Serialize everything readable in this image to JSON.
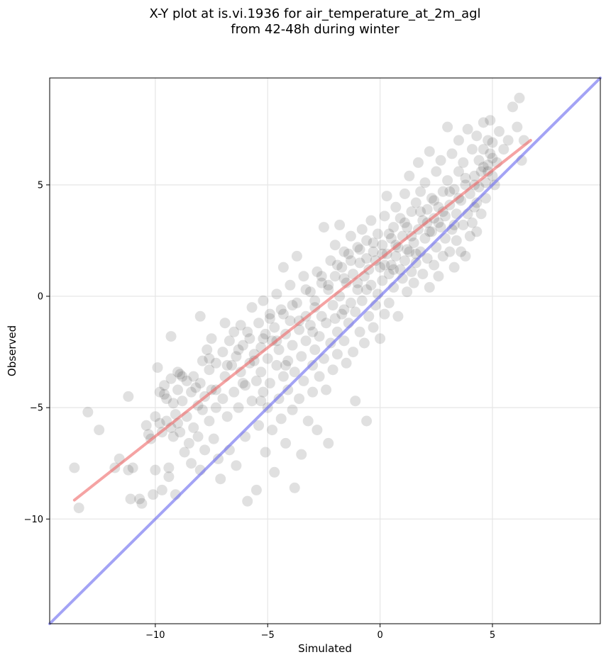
{
  "chart_data": {
    "type": "scatter",
    "title_line1": "X-Y plot at is.vi.1936 for air_temperature_at_2m_agl",
    "title_line2": "from 42-48h during winter",
    "xlabel": "Simulated",
    "ylabel": "Observed",
    "xlim": [
      -14.7,
      9.8
    ],
    "ylim": [
      -14.7,
      9.8
    ],
    "xticks": [
      -10,
      -5,
      0,
      5
    ],
    "xtick_labels": [
      "−10",
      "−5",
      "0",
      "5"
    ],
    "yticks": [
      -10,
      -5,
      0,
      5
    ],
    "ytick_labels": [
      "−10",
      "−5",
      "0",
      "5"
    ],
    "grid": true,
    "point_color": "#000000",
    "point_alpha": 0.12,
    "identity_line": {
      "color": "#6666ee",
      "x": [
        -14.7,
        9.8
      ],
      "y": [
        -14.7,
        9.8
      ]
    },
    "fit_line": {
      "color": "#ee6666",
      "x": [
        -13.6,
        6.7
      ],
      "y": [
        -9.15,
        7.0
      ]
    },
    "points": [
      [
        -13.6,
        -7.7
      ],
      [
        -13.4,
        -9.5
      ],
      [
        -13.0,
        -5.2
      ],
      [
        -12.5,
        -6.0
      ],
      [
        -11.8,
        -7.7
      ],
      [
        -11.6,
        -7.3
      ],
      [
        -11.2,
        -4.5
      ],
      [
        -11.2,
        -7.8
      ],
      [
        -11.1,
        -9.1
      ],
      [
        -11.0,
        -7.7
      ],
      [
        -10.7,
        -9.1
      ],
      [
        -10.6,
        -9.3
      ],
      [
        -10.4,
        -5.8
      ],
      [
        -10.2,
        -6.4
      ],
      [
        -10.1,
        -8.9
      ],
      [
        -10.0,
        -5.4
      ],
      [
        -10.0,
        -7.8
      ],
      [
        -9.9,
        -3.2
      ],
      [
        -9.8,
        -4.3
      ],
      [
        -9.8,
        -5.7
      ],
      [
        -9.7,
        -6.1
      ],
      [
        -9.7,
        -8.7
      ],
      [
        -9.6,
        -4.0
      ],
      [
        -9.5,
        -4.6
      ],
      [
        -9.5,
        -5.6
      ],
      [
        -9.4,
        -7.7
      ],
      [
        -9.4,
        -8.1
      ],
      [
        -9.3,
        -1.8
      ],
      [
        -9.3,
        -3.7
      ],
      [
        -9.3,
        -5.9
      ],
      [
        -9.2,
        -4.8
      ],
      [
        -9.2,
        -6.3
      ],
      [
        -9.1,
        -5.3
      ],
      [
        -9.1,
        -8.9
      ],
      [
        -9.0,
        -3.4
      ],
      [
        -9.0,
        -4.2
      ],
      [
        -8.9,
        -3.5
      ],
      [
        -8.9,
        -6.1
      ],
      [
        -8.8,
        -4.7
      ],
      [
        -8.7,
        -7.0
      ],
      [
        -8.6,
        -3.8
      ],
      [
        -8.6,
        -5.4
      ],
      [
        -8.5,
        -6.6
      ],
      [
        -8.4,
        -4.3
      ],
      [
        -8.4,
        -7.5
      ],
      [
        -8.3,
        -3.6
      ],
      [
        -8.3,
        -5.9
      ],
      [
        -8.2,
        -4.1
      ],
      [
        -8.1,
        -6.3
      ],
      [
        -8.0,
        -0.9
      ],
      [
        -8.0,
        -3.9
      ],
      [
        -8.0,
        -7.8
      ],
      [
        -7.9,
        -2.9
      ],
      [
        -7.9,
        -5.1
      ],
      [
        -7.8,
        -4.5
      ],
      [
        -7.8,
        -6.9
      ],
      [
        -7.7,
        -2.4
      ],
      [
        -7.6,
        -3.3
      ],
      [
        -7.6,
        -5.6
      ],
      [
        -7.5,
        -1.9
      ],
      [
        -7.5,
        -4.2
      ],
      [
        -7.4,
        -6.4
      ],
      [
        -7.3,
        -3.0
      ],
      [
        -7.3,
        -5.0
      ],
      [
        -7.2,
        -7.3
      ],
      [
        -7.1,
        -8.2
      ],
      [
        -7.0,
        -2.5
      ],
      [
        -7.0,
        -4.6
      ],
      [
        -6.9,
        -1.2
      ],
      [
        -6.9,
        -3.6
      ],
      [
        -6.8,
        -5.4
      ],
      [
        -6.7,
        -2.0
      ],
      [
        -6.7,
        -6.9
      ],
      [
        -6.6,
        -3.1
      ],
      [
        -6.5,
        -1.6
      ],
      [
        -6.5,
        -4.3
      ],
      [
        -6.4,
        -2.7
      ],
      [
        -6.4,
        -7.6
      ],
      [
        -6.3,
        -5.0
      ],
      [
        -6.2,
        -1.3
      ],
      [
        -6.2,
        -3.4
      ],
      [
        -6.1,
        -2.2
      ],
      [
        -6.0,
        -4.0
      ],
      [
        -6.0,
        -6.3
      ],
      [
        -5.9,
        -9.2
      ],
      [
        -5.8,
        -1.9
      ],
      [
        -5.8,
        -3.0
      ],
      [
        -5.7,
        -0.5
      ],
      [
        -5.7,
        -4.7
      ],
      [
        -5.6,
        -2.6
      ],
      [
        -5.5,
        -3.8
      ],
      [
        -5.5,
        -8.7
      ],
      [
        -5.4,
        -1.2
      ],
      [
        -5.4,
        -5.8
      ],
      [
        -5.3,
        -2.3
      ],
      [
        -5.3,
        -3.4
      ],
      [
        -5.2,
        -0.2
      ],
      [
        -5.2,
        -4.3
      ],
      [
        -5.1,
        -1.7
      ],
      [
        -5.1,
        -7.0
      ],
      [
        -5.0,
        -2.8
      ],
      [
        -5.0,
        -5.0
      ],
      [
        -4.9,
        -0.8
      ],
      [
        -4.9,
        -3.9
      ],
      [
        -4.8,
        -2.0
      ],
      [
        -4.8,
        -6.0
      ],
      [
        -4.7,
        -1.4
      ],
      [
        -4.7,
        -7.9
      ],
      [
        -4.6,
        0.1
      ],
      [
        -4.6,
        -3.1
      ],
      [
        -4.5,
        -2.4
      ],
      [
        -4.5,
        -4.6
      ],
      [
        -4.4,
        -0.6
      ],
      [
        -4.4,
        -5.5
      ],
      [
        -4.3,
        1.3
      ],
      [
        -4.3,
        -3.6
      ],
      [
        -4.2,
        -1.7
      ],
      [
        -4.2,
        -6.6
      ],
      [
        -4.1,
        -2.9
      ],
      [
        -4.1,
        -4.2
      ],
      [
        -4.0,
        0.5
      ],
      [
        -4.0,
        -1.1
      ],
      [
        -3.9,
        -2.2
      ],
      [
        -3.9,
        -5.1
      ],
      [
        -3.8,
        -3.4
      ],
      [
        -3.8,
        -8.6
      ],
      [
        -3.7,
        1.8
      ],
      [
        -3.7,
        -0.3
      ],
      [
        -3.6,
        -1.5
      ],
      [
        -3.6,
        -4.6
      ],
      [
        -3.5,
        -2.7
      ],
      [
        -3.5,
        -7.1
      ],
      [
        -3.4,
        0.9
      ],
      [
        -3.4,
        -3.8
      ],
      [
        -3.3,
        -0.9
      ],
      [
        -3.3,
        -2.0
      ],
      [
        -3.2,
        -5.6
      ],
      [
        -3.1,
        -1.3
      ],
      [
        -3.1,
        0.2
      ],
      [
        -3.0,
        -3.1
      ],
      [
        -3.0,
        -4.3
      ],
      [
        -2.9,
        -0.5
      ],
      [
        -2.9,
        -2.4
      ],
      [
        -2.8,
        1.1
      ],
      [
        -2.8,
        -6.0
      ],
      [
        -2.7,
        -1.8
      ],
      [
        -2.7,
        -3.6
      ],
      [
        -2.6,
        0.6
      ],
      [
        -2.6,
        -0.9
      ],
      [
        -2.5,
        -2.8
      ],
      [
        -2.5,
        3.1
      ],
      [
        -2.4,
        -4.2
      ],
      [
        -2.4,
        -1.2
      ],
      [
        -2.3,
        0.3
      ],
      [
        -2.3,
        -6.6
      ],
      [
        -2.2,
        1.6
      ],
      [
        -2.2,
        -2.1
      ],
      [
        -2.1,
        -0.4
      ],
      [
        -2.1,
        -3.3
      ],
      [
        -2.0,
        2.3
      ],
      [
        -2.0,
        0.9
      ],
      [
        -1.9,
        -1.6
      ],
      [
        -1.9,
        -2.6
      ],
      [
        -1.8,
        0.0
      ],
      [
        -1.8,
        3.2
      ],
      [
        -1.7,
        1.3
      ],
      [
        -1.7,
        -0.8
      ],
      [
        -1.6,
        -2.0
      ],
      [
        -1.6,
        2.0
      ],
      [
        -1.5,
        -3.0
      ],
      [
        -1.5,
        0.6
      ],
      [
        -1.4,
        -1.2
      ],
      [
        -1.4,
        1.9
      ],
      [
        -1.3,
        -0.3
      ],
      [
        -1.3,
        2.7
      ],
      [
        -1.2,
        -2.5
      ],
      [
        -1.2,
        1.0
      ],
      [
        -1.1,
        -0.7
      ],
      [
        -1.1,
        -4.7
      ],
      [
        -1.0,
        2.2
      ],
      [
        -1.0,
        0.3
      ],
      [
        -0.9,
        -1.6
      ],
      [
        -0.9,
        1.5
      ],
      [
        -0.8,
        3.0
      ],
      [
        -0.8,
        -0.2
      ],
      [
        -0.7,
        -2.1
      ],
      [
        -0.7,
        0.9
      ],
      [
        -0.6,
        2.5
      ],
      [
        -0.6,
        -5.6
      ],
      [
        -0.5,
        1.2
      ],
      [
        -0.5,
        -0.9
      ],
      [
        -0.4,
        3.4
      ],
      [
        -0.4,
        0.5
      ],
      [
        -0.3,
        -1.4
      ],
      [
        -0.3,
        2.0
      ],
      [
        -0.2,
        1.6
      ],
      [
        -0.2,
        -0.4
      ],
      [
        -0.1,
        2.8
      ],
      [
        -0.1,
        0.1
      ],
      [
        0.0,
        1.3
      ],
      [
        0.0,
        -1.9
      ],
      [
        0.1,
        2.3
      ],
      [
        0.1,
        0.7
      ],
      [
        0.2,
        3.6
      ],
      [
        0.2,
        -0.8
      ],
      [
        0.3,
        1.9
      ],
      [
        0.3,
        4.5
      ],
      [
        0.4,
        1.0
      ],
      [
        0.4,
        -0.3
      ],
      [
        0.5,
        2.6
      ],
      [
        0.5,
        1.4
      ],
      [
        0.6,
        3.1
      ],
      [
        0.6,
        0.4
      ],
      [
        0.7,
        4.0
      ],
      [
        0.7,
        1.8
      ],
      [
        0.8,
        -0.9
      ],
      [
        0.8,
        2.2
      ],
      [
        0.9,
        1.2
      ],
      [
        0.9,
        3.5
      ],
      [
        1.0,
        0.8
      ],
      [
        1.0,
        2.7
      ],
      [
        1.1,
        4.6
      ],
      [
        1.1,
        1.6
      ],
      [
        1.2,
        0.2
      ],
      [
        1.2,
        3.1
      ],
      [
        1.3,
        2.0
      ],
      [
        1.3,
        5.4
      ],
      [
        1.4,
        1.1
      ],
      [
        1.4,
        3.8
      ],
      [
        1.5,
        2.4
      ],
      [
        1.5,
        0.6
      ],
      [
        1.6,
        4.2
      ],
      [
        1.6,
        1.5
      ],
      [
        1.7,
        3.0
      ],
      [
        1.7,
        6.0
      ],
      [
        1.8,
        2.0
      ],
      [
        1.8,
        4.7
      ],
      [
        1.9,
        1.0
      ],
      [
        1.9,
        3.4
      ],
      [
        2.0,
        2.6
      ],
      [
        2.0,
        5.1
      ],
      [
        2.1,
        1.7
      ],
      [
        2.1,
        3.9
      ],
      [
        2.2,
        0.4
      ],
      [
        2.2,
        6.5
      ],
      [
        2.3,
        2.9
      ],
      [
        2.3,
        4.4
      ],
      [
        2.4,
        1.4
      ],
      [
        2.4,
        3.5
      ],
      [
        2.5,
        5.6
      ],
      [
        2.5,
        2.2
      ],
      [
        2.6,
        4.0
      ],
      [
        2.6,
        0.9
      ],
      [
        2.7,
        3.1
      ],
      [
        2.7,
        6.1
      ],
      [
        2.8,
        1.8
      ],
      [
        2.8,
        4.7
      ],
      [
        2.9,
        2.6
      ],
      [
        2.9,
        3.6
      ],
      [
        3.0,
        5.2
      ],
      [
        3.0,
        7.6
      ],
      [
        3.1,
        2.0
      ],
      [
        3.1,
        4.1
      ],
      [
        3.2,
        3.0
      ],
      [
        3.2,
        6.4
      ],
      [
        3.3,
        1.3
      ],
      [
        3.3,
        4.8
      ],
      [
        3.4,
        2.5
      ],
      [
        3.4,
        3.7
      ],
      [
        3.5,
        5.6
      ],
      [
        3.5,
        7.0
      ],
      [
        3.6,
        2.0
      ],
      [
        3.6,
        4.3
      ],
      [
        3.7,
        3.2
      ],
      [
        3.7,
        6.0
      ],
      [
        3.8,
        1.8
      ],
      [
        3.8,
        5.0
      ],
      [
        3.9,
        3.7
      ],
      [
        3.9,
        7.5
      ],
      [
        4.0,
        2.7
      ],
      [
        4.0,
        4.6
      ],
      [
        4.1,
        6.6
      ],
      [
        4.1,
        3.3
      ],
      [
        4.2,
        5.4
      ],
      [
        4.2,
        4.0
      ],
      [
        4.3,
        7.2
      ],
      [
        4.3,
        2.9
      ],
      [
        4.4,
        6.1
      ],
      [
        4.4,
        4.9
      ],
      [
        4.5,
        5.6
      ],
      [
        4.5,
        3.7
      ],
      [
        4.6,
        7.8
      ],
      [
        4.6,
        6.6
      ],
      [
        4.7,
        5.1
      ],
      [
        4.7,
        4.4
      ],
      [
        4.8,
        7.0
      ],
      [
        4.8,
        5.9
      ],
      [
        4.9,
        6.4
      ],
      [
        4.9,
        7.9
      ],
      [
        5.0,
        5.4
      ],
      [
        5.0,
        6.9
      ],
      [
        5.2,
        6.0
      ],
      [
        5.3,
        7.4
      ],
      [
        5.5,
        6.6
      ],
      [
        5.7,
        7.0
      ],
      [
        5.9,
        8.5
      ],
      [
        6.1,
        7.6
      ],
      [
        6.2,
        8.9
      ],
      [
        6.3,
        6.1
      ],
      [
        6.4,
        7.0
      ],
      [
        -9.6,
        -4.4
      ],
      [
        -8.8,
        -3.6
      ],
      [
        -8.1,
        -4.9
      ],
      [
        -7.6,
        -2.8
      ],
      [
        -6.8,
        -3.1
      ],
      [
        -6.3,
        -2.4
      ],
      [
        -5.9,
        -1.6
      ],
      [
        -5.6,
        -2.9
      ],
      [
        -5.2,
        -1.9
      ],
      [
        -4.9,
        -1.0
      ],
      [
        -4.6,
        -2.0
      ],
      [
        -4.3,
        -0.8
      ],
      [
        -3.9,
        -0.4
      ],
      [
        -3.6,
        -1.1
      ],
      [
        -3.3,
        0.3
      ],
      [
        -2.9,
        -0.2
      ],
      [
        -2.6,
        0.9
      ],
      [
        -2.3,
        0.5
      ],
      [
        -1.9,
        1.4
      ],
      [
        -1.6,
        0.8
      ],
      [
        -1.3,
        1.6
      ],
      [
        -0.9,
        2.1
      ],
      [
        -0.6,
        1.7
      ],
      [
        -0.3,
        2.4
      ],
      [
        0.1,
        1.9
      ],
      [
        0.4,
        2.8
      ],
      [
        0.7,
        2.3
      ],
      [
        1.1,
        3.3
      ],
      [
        1.4,
        2.7
      ],
      [
        1.8,
        3.8
      ],
      [
        2.1,
        3.3
      ],
      [
        2.4,
        4.3
      ],
      [
        2.8,
        3.8
      ],
      [
        3.1,
        4.7
      ],
      [
        3.5,
        4.4
      ],
      [
        3.8,
        5.3
      ],
      [
        4.2,
        5.0
      ],
      [
        4.6,
        5.8
      ],
      [
        5.0,
        6.2
      ],
      [
        4.8,
        5.6
      ],
      [
        -10.3,
        -6.2
      ],
      [
        -9.0,
        -5.7
      ],
      [
        -7.3,
        -4.2
      ],
      [
        -6.1,
        -3.9
      ],
      [
        -5.3,
        -4.7
      ],
      [
        -4.2,
        -3.1
      ],
      [
        -3.0,
        -1.6
      ],
      [
        -2.0,
        -1.0
      ],
      [
        -1.0,
        0.6
      ],
      [
        0.2,
        1.4
      ],
      [
        1.2,
        2.1
      ],
      [
        2.2,
        2.9
      ],
      [
        3.3,
        3.2
      ],
      [
        4.3,
        4.2
      ],
      [
        5.1,
        5.0
      ],
      [
        0.6,
        1.2
      ],
      [
        1.6,
        1.9
      ],
      [
        2.6,
        3.3
      ],
      [
        -0.6,
        0.3
      ],
      [
        -1.6,
        -0.6
      ]
    ]
  }
}
